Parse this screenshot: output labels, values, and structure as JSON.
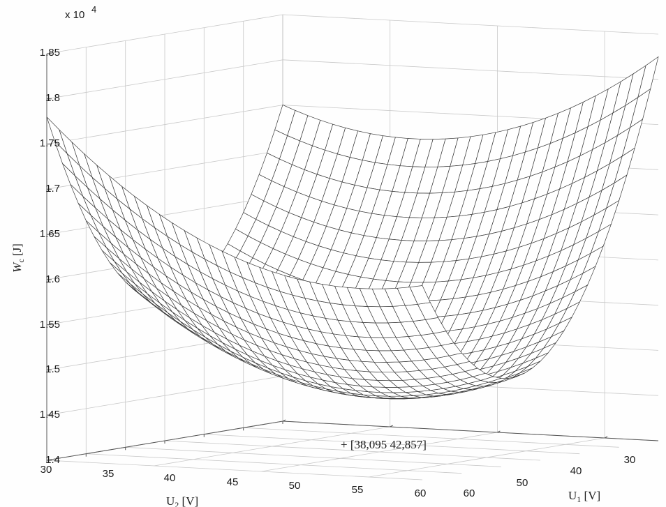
{
  "chart_data": {
    "type": "surface",
    "title": "",
    "z_label_main": "W",
    "z_label_sub": "c",
    "z_label_unit": " [J]",
    "y_label_main": "U",
    "y_label_sub": "2",
    "y_label_unit": " [V]",
    "x_label_main": "U",
    "x_label_sub": "1",
    "x_label_unit": " [V]",
    "z_multiplier": "x 10",
    "z_multiplier_exp": "4",
    "z_ticks": [
      "1.4",
      "1.45",
      "1.5",
      "1.55",
      "1.6",
      "1.65",
      "1.7",
      "1.75",
      "1.8",
      "1.85"
    ],
    "y_ticks": [
      "30",
      "35",
      "40",
      "45",
      "50",
      "55",
      "60"
    ],
    "x_ticks": [
      "30",
      "40",
      "50",
      "60"
    ],
    "zlim": [
      1.4,
      1.85
    ],
    "xlim": [
      25,
      60
    ],
    "ylim": [
      30,
      60
    ],
    "grid": true,
    "minimum": {
      "u1": 38.095,
      "u2": 42.857,
      "w": 1.4643
    },
    "corner_values": {
      "u1_25_u2_30": 1.615,
      "u1_60_u2_30": 1.78,
      "u1_25_u2_60": 1.825,
      "u1_60_u2_60": 1.622
    },
    "annotation": "+ [38,095 42,857]"
  }
}
